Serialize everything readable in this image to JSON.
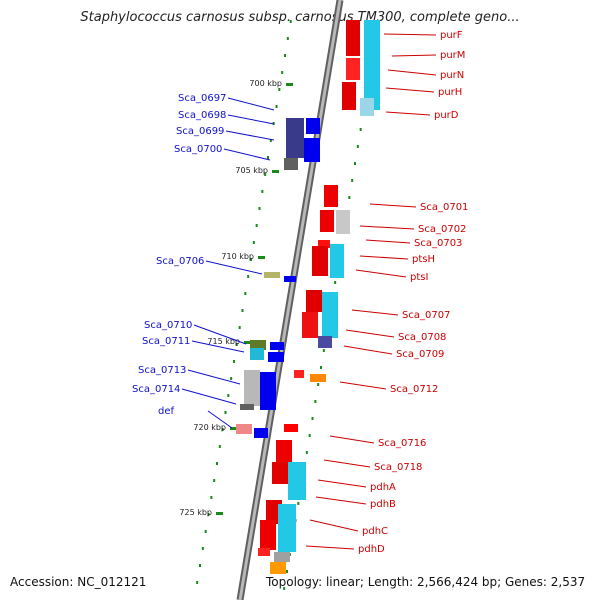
{
  "title": "Staphylococcus carnosus subsp. carnosus TM300, complete geno...",
  "accession": "Accession: NC_012121",
  "summary": "Topology: linear; Length: 2,566,424 bp; Genes: 2,537",
  "ticks": [
    "700 kbp",
    "705 kbp",
    "710 kbp",
    "715 kbp",
    "720 kbp",
    "725 kbp"
  ],
  "left_labels": [
    "Sca_0697",
    "Sca_0698",
    "Sca_0699",
    "Sca_0700",
    "Sca_0706",
    "Sca_0710",
    "Sca_0711",
    "Sca_0713",
    "Sca_0714",
    "def"
  ],
  "right_labels": [
    "purF",
    "purM",
    "purN",
    "purH",
    "purD",
    "Sca_0701",
    "Sca_0702",
    "Sca_0703",
    "ptsH",
    "ptsI",
    "Sca_0707",
    "Sca_0708",
    "Sca_0709",
    "Sca_0712",
    "Sca_0716",
    "Sca_0718",
    "pdhA",
    "pdhB",
    "pdhC",
    "pdhD"
  ],
  "colors": {
    "forward_gene": "#0000ee",
    "reverse_gene": "#ee0000",
    "cds_cyan": "#22c8e6",
    "backbone": "#8a8a8a",
    "dotted_track": "#1a8a1a"
  }
}
